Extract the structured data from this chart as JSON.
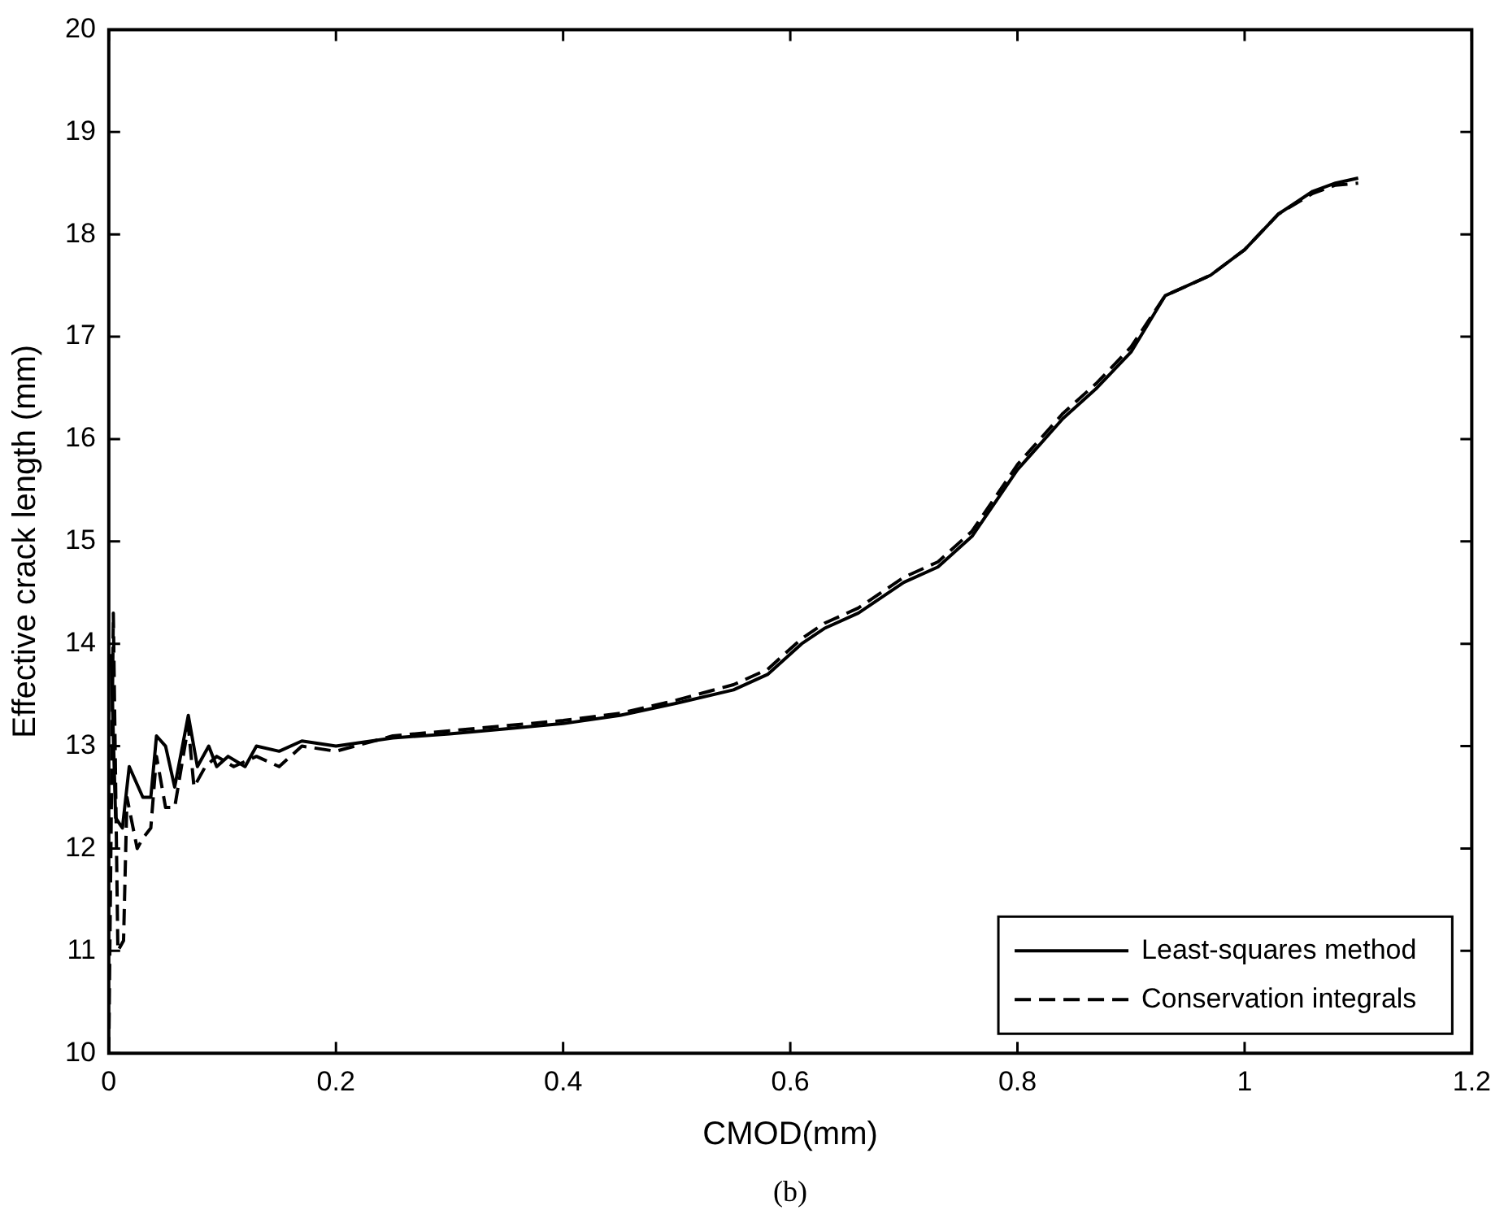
{
  "chart_data": {
    "type": "line",
    "xlabel": "CMOD(mm)",
    "ylabel": "Effective crack length (mm)",
    "annotations": [
      "(b)"
    ],
    "xlim": [
      0,
      1.2
    ],
    "xticks": [
      0,
      0.2,
      0.4,
      0.6,
      0.8,
      1,
      1.2
    ],
    "ylim": [
      10,
      20
    ],
    "yticks": [
      10,
      11,
      12,
      13,
      14,
      15,
      16,
      17,
      18,
      19,
      20
    ],
    "grid": false,
    "legend": "bottom right",
    "marker": "none",
    "series": [
      {
        "name": "Least-squares method",
        "color": "#000000",
        "line_style": "solid",
        "x": [
          0.002,
          0.006,
          0.012,
          0.018,
          0.03,
          0.037,
          0.042,
          0.05,
          0.058,
          0.07,
          0.078,
          0.088,
          0.095,
          0.105,
          0.12,
          0.13,
          0.15,
          0.17,
          0.2,
          0.25,
          0.3,
          0.35,
          0.4,
          0.45,
          0.5,
          0.55,
          0.58,
          0.61,
          0.63,
          0.66,
          0.7,
          0.73,
          0.76,
          0.8,
          0.84,
          0.87,
          0.9,
          0.93,
          0.97,
          1.0,
          1.03,
          1.06,
          1.08,
          1.1
        ],
        "values": [
          13.9,
          12.3,
          12.2,
          12.8,
          12.5,
          12.5,
          13.1,
          13.0,
          12.6,
          13.3,
          12.8,
          13.0,
          12.8,
          12.9,
          12.8,
          13.0,
          12.95,
          13.05,
          13.0,
          13.08,
          13.12,
          13.17,
          13.22,
          13.3,
          13.42,
          13.55,
          13.7,
          14.0,
          14.15,
          14.3,
          14.6,
          14.75,
          15.05,
          15.7,
          16.2,
          16.5,
          16.85,
          17.4,
          17.6,
          17.85,
          18.2,
          18.42,
          18.5,
          18.55
        ]
      },
      {
        "name": "Conservation integrals",
        "color": "#000000",
        "line_style": "dashed",
        "x": [
          0.0,
          0.004,
          0.008,
          0.013,
          0.016,
          0.025,
          0.03,
          0.037,
          0.042,
          0.05,
          0.058,
          0.07,
          0.075,
          0.085,
          0.095,
          0.11,
          0.13,
          0.15,
          0.17,
          0.2,
          0.25,
          0.3,
          0.35,
          0.4,
          0.45,
          0.5,
          0.55,
          0.58,
          0.61,
          0.63,
          0.66,
          0.7,
          0.73,
          0.76,
          0.8,
          0.84,
          0.87,
          0.9,
          0.93,
          0.97,
          1.0,
          1.03,
          1.06,
          1.08,
          1.1
        ],
        "values": [
          10.0,
          14.3,
          11.0,
          11.1,
          12.5,
          12.0,
          12.1,
          12.2,
          12.9,
          12.4,
          12.4,
          13.2,
          12.6,
          12.8,
          12.9,
          12.8,
          12.9,
          12.8,
          13.0,
          12.95,
          13.1,
          13.15,
          13.2,
          13.25,
          13.32,
          13.45,
          13.6,
          13.75,
          14.05,
          14.2,
          14.35,
          14.65,
          14.8,
          15.1,
          15.75,
          16.25,
          16.55,
          16.9,
          17.4,
          17.6,
          17.85,
          18.2,
          18.4,
          18.48,
          18.5
        ]
      }
    ]
  }
}
